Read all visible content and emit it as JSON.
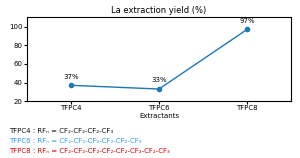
{
  "chart_data": {
    "type": "line",
    "title": "La extraction yield (%)",
    "xlabel": "Extractants",
    "categories": [
      "TFPC4",
      "TFPC6",
      "TFPC8"
    ],
    "values": [
      37,
      33,
      97
    ],
    "ylim": [
      20,
      110
    ],
    "yticks": [
      20,
      40,
      60,
      80,
      100
    ],
    "marker": "o",
    "data_labels": true,
    "value_labels": [
      "37%",
      "33%",
      "97%"
    ],
    "annotations": [
      {
        "text": "TFPC4 : RFₙ = CF₂-CF₂-CF₂-CF₃",
        "color": "#111111"
      },
      {
        "text": "TFPC6 : RFₙ = CF₂-CF₂-CF₂-CF₂-CF₂-CF₃",
        "color": "#3399ff"
      },
      {
        "text": "TFPC8 : RFₙ = CF₂-CF₂-CF₂-CF₂-CF₂-CF₂-CF₂-CF₃",
        "color": "#dd0000"
      }
    ]
  }
}
